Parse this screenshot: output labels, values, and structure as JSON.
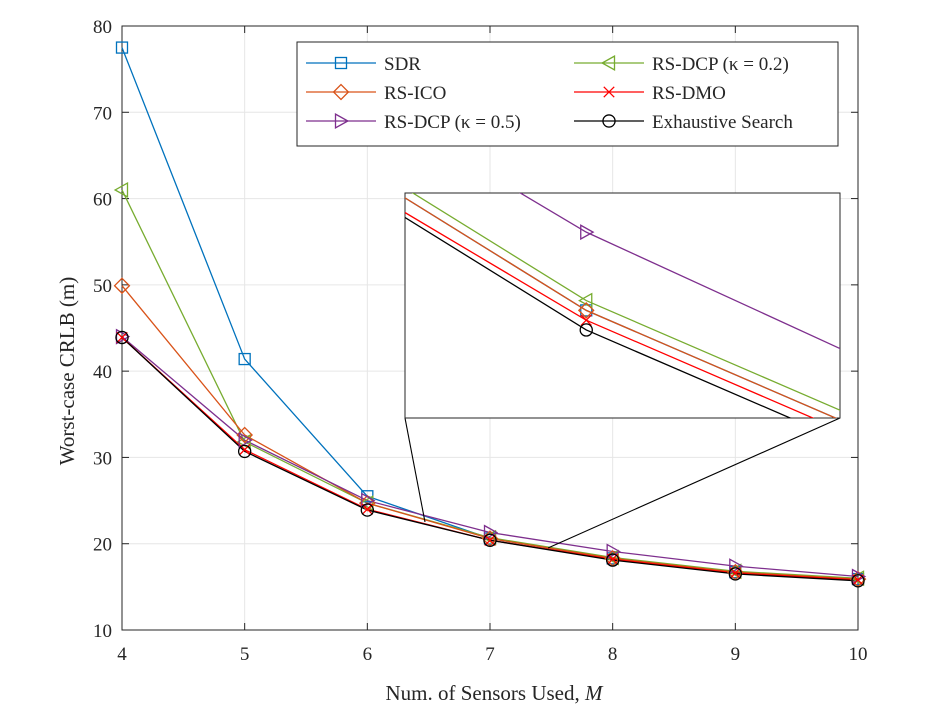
{
  "chart_data": {
    "type": "line",
    "title": "",
    "xlabel": "Num. of Sensors Used, ",
    "xlabel_italic": "M",
    "ylabel": "Worst-case CRLB (m)",
    "xlim": [
      4,
      10
    ],
    "ylim": [
      10,
      80
    ],
    "xticks": [
      4,
      5,
      6,
      7,
      8,
      9,
      10
    ],
    "yticks": [
      10,
      20,
      30,
      40,
      50,
      60,
      70,
      80
    ],
    "grid": true,
    "legend_position": "top-right",
    "x": [
      4,
      5,
      6,
      7,
      8,
      9,
      10
    ],
    "series": [
      {
        "name": "SDR",
        "color": "#0072BD",
        "marker": "square",
        "values": [
          77.5,
          41.4,
          25.5,
          20.6,
          18.3,
          16.7,
          15.9
        ]
      },
      {
        "name": "RS-ICO",
        "color": "#D95319",
        "marker": "diamond",
        "values": [
          49.9,
          32.6,
          24.7,
          20.6,
          18.3,
          16.7,
          15.9
        ]
      },
      {
        "name": "RS-DCP (κ = 0.5)",
        "color": "#7E2F8E",
        "marker": "triangle-right",
        "values": [
          44.0,
          32.0,
          25.0,
          21.3,
          19.1,
          17.4,
          16.2
        ]
      },
      {
        "name": "RS-DCP (κ = 0.2)",
        "color": "#77AC30",
        "marker": "triangle-left",
        "values": [
          61.0,
          31.8,
          24.7,
          20.7,
          18.4,
          16.8,
          16.0
        ]
      },
      {
        "name": "RS-DMO",
        "color": "#FF0000",
        "marker": "x",
        "values": [
          43.9,
          30.9,
          24.0,
          20.4,
          18.2,
          16.6,
          15.8
        ]
      },
      {
        "name": "Exhaustive Search",
        "color": "#000000",
        "marker": "circle",
        "values": [
          43.9,
          30.7,
          23.9,
          20.4,
          18.1,
          16.5,
          15.7
        ]
      }
    ],
    "inset": {
      "description_zoom": "zoomed view of the curves around M = 7 to 8",
      "xlim": [
        7.5,
        8.7
      ],
      "ylim": [
        17.2,
        19.5
      ]
    }
  }
}
